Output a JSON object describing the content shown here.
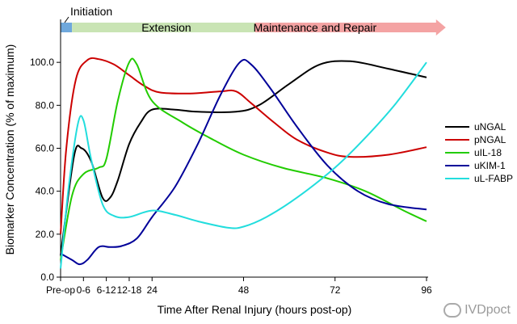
{
  "chart_data": {
    "type": "line",
    "title": "",
    "xlabel": "Time After Renal Injury (hours post-op)",
    "ylabel": "Biomarker Concentration (% of maximum)",
    "ylim": [
      0,
      120
    ],
    "xlim": [
      0,
      96
    ],
    "y_ticks": [
      0.0,
      20.0,
      40.0,
      60.0,
      80.0,
      100.0
    ],
    "y_tick_labels": [
      "0.0",
      "20.0",
      "40.0",
      "60.0",
      "80.0",
      "100.0"
    ],
    "x_ticks": [
      {
        "x": 0,
        "label": "Pre-op"
      },
      {
        "x": 6,
        "label": "0-6"
      },
      {
        "x": 12,
        "label": "6-12"
      },
      {
        "x": 18,
        "label": "12-18"
      },
      {
        "x": 24,
        "label": "24"
      },
      {
        "x": 48,
        "label": "48"
      },
      {
        "x": 72,
        "label": "72"
      },
      {
        "x": 96,
        "label": "96"
      }
    ],
    "phases": [
      {
        "label": "Initiation",
        "start": 0,
        "end": 3,
        "color": "#6fa8dc"
      },
      {
        "label": "Extension",
        "start": 3,
        "end": 51,
        "color": "#c9e4b4"
      },
      {
        "label": "Maintenance and Repair",
        "start": 51,
        "end": 98.5,
        "color": "#f4a3a3"
      }
    ],
    "legend_position": "right",
    "series": [
      {
        "name": "uNGAL",
        "color": "#000000",
        "points": [
          [
            0,
            10
          ],
          [
            3.5,
            56
          ],
          [
            5.5,
            60
          ],
          [
            8,
            54
          ],
          [
            11,
            37
          ],
          [
            13,
            37
          ],
          [
            15,
            45
          ],
          [
            18,
            62
          ],
          [
            21,
            72
          ],
          [
            24,
            78
          ],
          [
            30,
            78
          ],
          [
            36,
            77
          ],
          [
            46,
            77
          ],
          [
            52,
            80
          ],
          [
            60,
            90
          ],
          [
            68,
            99
          ],
          [
            76,
            100.5
          ],
          [
            86,
            97
          ],
          [
            96,
            93
          ]
        ]
      },
      {
        "name": "pNGAL",
        "color": "#cc0000",
        "points": [
          [
            0,
            20
          ],
          [
            1.5,
            60
          ],
          [
            4,
            92
          ],
          [
            7,
            101
          ],
          [
            10,
            101.5
          ],
          [
            14,
            99
          ],
          [
            18,
            94
          ],
          [
            22,
            89
          ],
          [
            26,
            86
          ],
          [
            34,
            85.5
          ],
          [
            42,
            86.5
          ],
          [
            46,
            86.5
          ],
          [
            50,
            81
          ],
          [
            56,
            72
          ],
          [
            62,
            64
          ],
          [
            70,
            58
          ],
          [
            76,
            56
          ],
          [
            86,
            57
          ],
          [
            96,
            60.5
          ]
        ]
      },
      {
        "name": "uIL-18",
        "color": "#22cc00",
        "points": [
          [
            0,
            8
          ],
          [
            3,
            38
          ],
          [
            6,
            48
          ],
          [
            10,
            51
          ],
          [
            12,
            55
          ],
          [
            15,
            82
          ],
          [
            18,
            100
          ],
          [
            20,
            99
          ],
          [
            24,
            82
          ],
          [
            32,
            72
          ],
          [
            40,
            64
          ],
          [
            48,
            57
          ],
          [
            58,
            51
          ],
          [
            70,
            46
          ],
          [
            80,
            40
          ],
          [
            90,
            31
          ],
          [
            96,
            26
          ]
        ]
      },
      {
        "name": "uKIM-1",
        "color": "#000099",
        "points": [
          [
            0,
            11
          ],
          [
            3,
            8
          ],
          [
            5,
            6
          ],
          [
            7,
            8
          ],
          [
            10,
            14
          ],
          [
            13,
            14
          ],
          [
            16,
            14.5
          ],
          [
            20,
            18
          ],
          [
            24,
            28
          ],
          [
            30,
            42
          ],
          [
            36,
            62
          ],
          [
            42,
            85
          ],
          [
            47,
            100
          ],
          [
            50,
            99
          ],
          [
            55,
            88
          ],
          [
            62,
            70
          ],
          [
            70,
            52
          ],
          [
            78,
            40
          ],
          [
            86,
            34
          ],
          [
            96,
            31.5
          ]
        ]
      },
      {
        "name": "uL-FABP",
        "color": "#22dddd",
        "points": [
          [
            0,
            4
          ],
          [
            2,
            40
          ],
          [
            4.5,
            71
          ],
          [
            6,
            73
          ],
          [
            8,
            55
          ],
          [
            11,
            34
          ],
          [
            14,
            28.5
          ],
          [
            18,
            28
          ],
          [
            24,
            31
          ],
          [
            30,
            29
          ],
          [
            36,
            26
          ],
          [
            44,
            23
          ],
          [
            48,
            23.5
          ],
          [
            54,
            28
          ],
          [
            62,
            37
          ],
          [
            72,
            51
          ],
          [
            80,
            65
          ],
          [
            88,
            81
          ],
          [
            96,
            100
          ]
        ]
      }
    ]
  },
  "watermark": {
    "text": "IVDpoct"
  }
}
